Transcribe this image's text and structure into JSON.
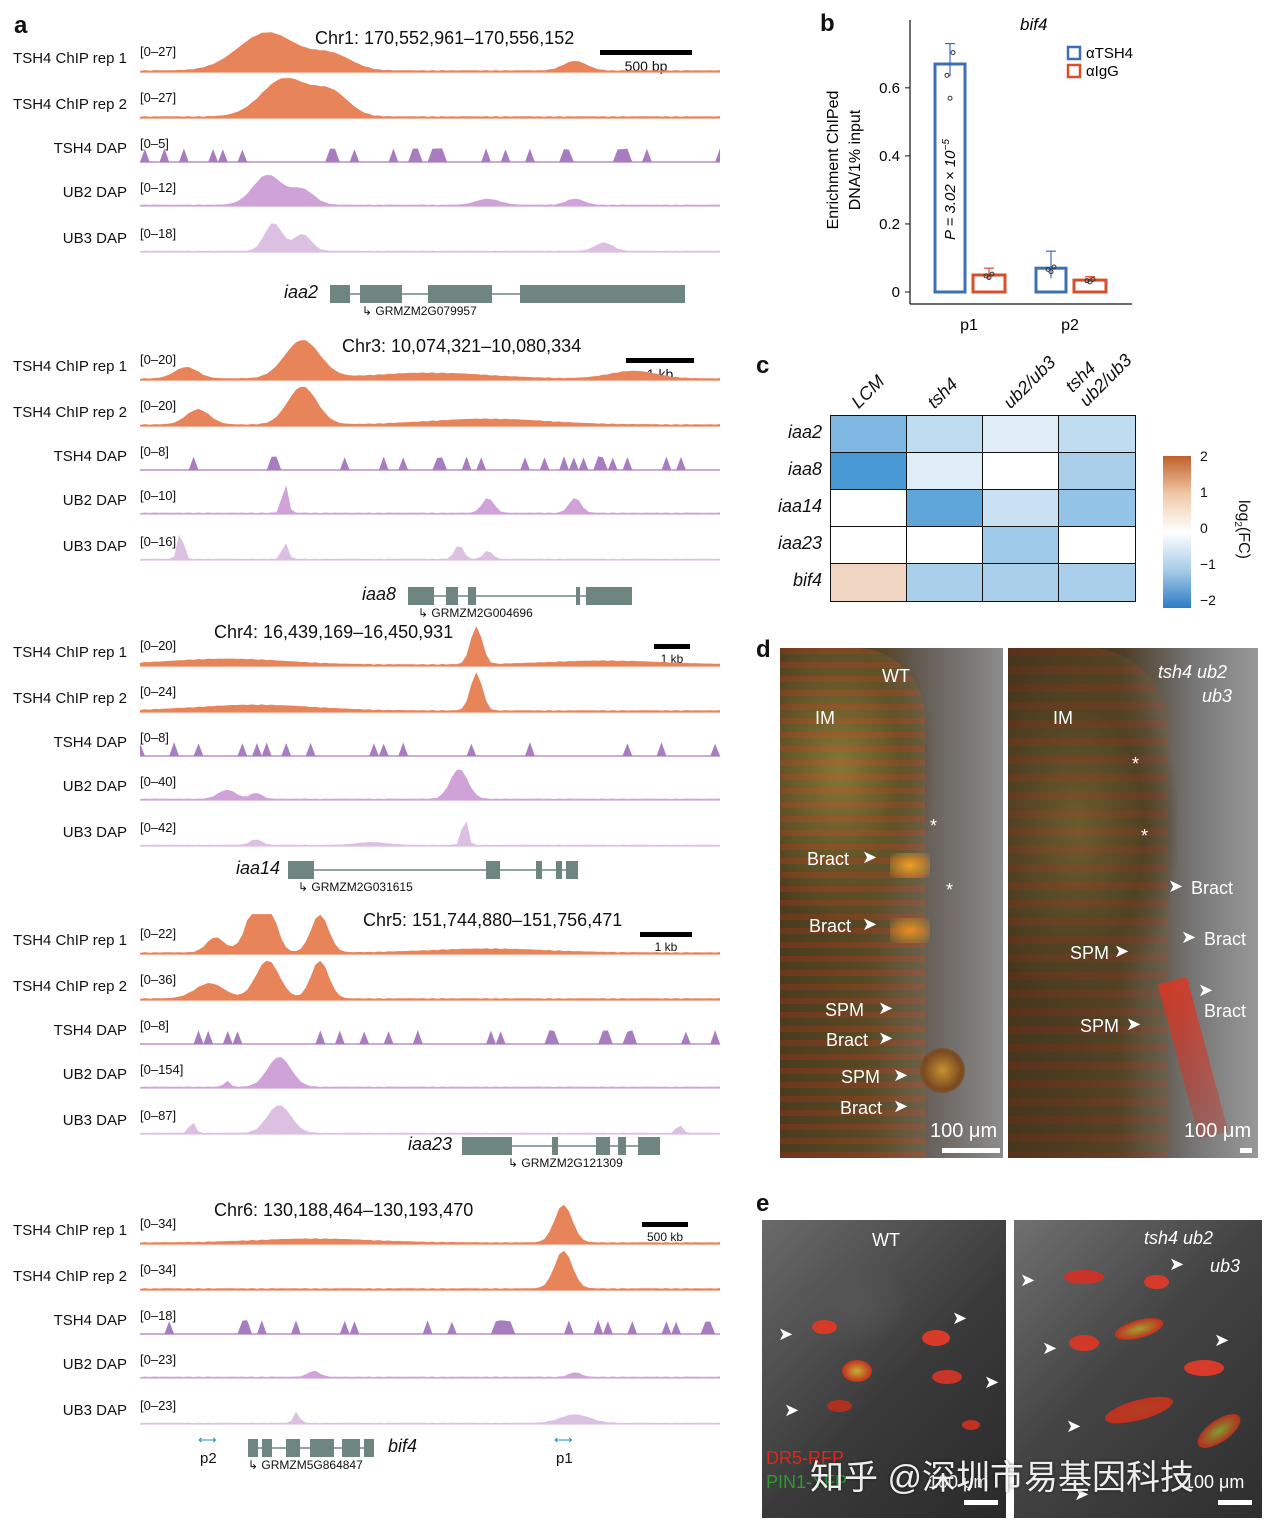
{
  "panel_labels": {
    "a": "a",
    "b": "b",
    "c": "c",
    "d": "d",
    "e": "e"
  },
  "colors": {
    "chip": "#e8845a",
    "tsh4dap": "#a87dbf",
    "ubdap": "#cfa3d8",
    "ub3dap": "#dcc0e2",
    "gene": "#6f8580",
    "tsh4bar": "#3c6fb6",
    "iggbar": "#d6502b"
  },
  "tracks": {
    "names": [
      "TSH4 ChIP rep 1",
      "TSH4 ChIP rep 2",
      "TSH4 DAP",
      "UB2 DAP",
      "UB3 DAP"
    ],
    "blocks": [
      {
        "locus": "Chr1: 170,552,961–170,556,152",
        "scale": "500 bp",
        "ranges": [
          "[0–27]",
          "[0–27]",
          "[0–5]",
          "[0–12]",
          "[0–18]"
        ],
        "gene": "iaa2",
        "gene_id": "GRMZM2G079957"
      },
      {
        "locus": "Chr3: 10,074,321–10,080,334",
        "scale": "1 kb",
        "ranges": [
          "[0–20]",
          "[0–20]",
          "[0–8]",
          "[0–10]",
          "[0–16]"
        ],
        "gene": "iaa8",
        "gene_id": "GRMZM2G004696"
      },
      {
        "locus": "Chr4: 16,439,169–16,450,931",
        "scale": "1 kb",
        "ranges": [
          "[0–20]",
          "[0–24]",
          "[0–8]",
          "[0–40]",
          "[0–42]"
        ],
        "gene": "iaa14",
        "gene_id": "GRMZM2G031615"
      },
      {
        "locus": "Chr5: 151,744,880–151,756,471",
        "scale": "1 kb",
        "ranges": [
          "[0–22]",
          "[0–36]",
          "[0–8]",
          "[0–154]",
          "[0–87]"
        ],
        "gene": "iaa23",
        "gene_id": "GRMZM2G121309"
      },
      {
        "locus": "Chr6: 130,188,464–130,193,470",
        "scale": "500 kb",
        "ranges": [
          "[0–34]",
          "[0–34]",
          "[0–18]",
          "[0–23]",
          "[0–23]"
        ],
        "gene": "bif4",
        "gene_id": "GRMZM5G864847",
        "primers": [
          "p2",
          "p1"
        ]
      }
    ]
  },
  "chart_data": [
    {
      "type": "bar",
      "title": "bif4",
      "ylabel_line1": "Enrichment ChIPed",
      "ylabel_line2": "DNA/1% input",
      "categories": [
        "p1",
        "p2"
      ],
      "series": [
        {
          "name": "αTSH4",
          "values": [
            0.67,
            0.07
          ],
          "errors": [
            0.06,
            0.05
          ]
        },
        {
          "name": "αIgG",
          "values": [
            0.05,
            0.035
          ],
          "errors": [
            0.02,
            0.01
          ]
        }
      ],
      "yticks": [
        "0",
        "0.2",
        "0.4",
        "0.6"
      ],
      "ylim": [
        0,
        0.72
      ],
      "pvalue_text": "P = 3.02 × 10",
      "pvalue_exp": "−5"
    },
    {
      "type": "heatmap",
      "rows": [
        "iaa2",
        "iaa8",
        "iaa14",
        "iaa23",
        "bif4"
      ],
      "columns": [
        "LCM",
        "tsh4",
        "ub2/ub3",
        "tsh4 ub2/ub3"
      ],
      "values": [
        [
          -1.2,
          -0.6,
          -0.3,
          -0.6
        ],
        [
          -1.7,
          -0.3,
          0,
          -0.8
        ],
        [
          0,
          -1.5,
          -0.5,
          -1.0
        ],
        [
          0,
          0,
          -0.9,
          0
        ],
        [
          0.6,
          -0.8,
          -0.8,
          -0.8
        ]
      ],
      "colorbar_label": "log2(FC)",
      "colorbar_ticks": [
        "2",
        "1",
        "0",
        "−1",
        "−2"
      ],
      "vmin": -2,
      "vmax": 2
    }
  ],
  "panel_d": {
    "left": {
      "title": "WT",
      "im": "IM",
      "labels": [
        "Bract",
        "Bract",
        "SPM",
        "Bract",
        "SPM",
        "Bract"
      ],
      "scale": "100 μm"
    },
    "right": {
      "title1": "tsh4 ub2",
      "title2": "ub3",
      "im": "IM",
      "labels": [
        "Bract",
        "SPM",
        "Bract",
        "Bract",
        "SPM"
      ],
      "scale": "100 μm"
    }
  },
  "panel_e": {
    "left": {
      "title": "WT",
      "legend1": "DR5-RFP",
      "legend2": "PIN1-YFP",
      "scale": "100 μm"
    },
    "right": {
      "title1": "tsh4 ub2",
      "title2": "ub3",
      "scale": "100 μm"
    }
  },
  "watermark": "知乎 @深圳市易基因科技"
}
